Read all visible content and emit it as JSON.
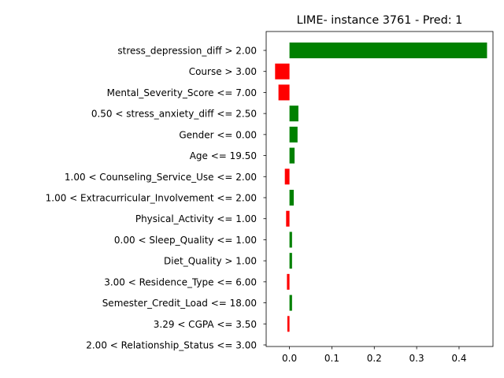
{
  "chart_data": {
    "type": "bar",
    "orientation": "horizontal",
    "title": "LIME- instance 3761 - Pred: 1",
    "xlabel": "",
    "ylabel": "",
    "xlim": [
      -0.055,
      0.48
    ],
    "xticks": [
      0.0,
      0.1,
      0.2,
      0.3,
      0.4
    ],
    "xtick_labels": [
      "0.0",
      "0.1",
      "0.2",
      "0.3",
      "0.4"
    ],
    "grid": false,
    "categories": [
      "stress_depression_diff > 2.00",
      "Course > 3.00",
      "Mental_Severity_Score <= 7.00",
      "0.50 < stress_anxiety_diff <= 2.50",
      "Gender <= 0.00",
      "Age <= 19.50",
      "1.00 < Counseling_Service_Use <= 2.00",
      "1.00 < Extracurricular_Involvement <= 2.00",
      "Physical_Activity <= 1.00",
      "0.00 < Sleep_Quality <= 1.00",
      "Diet_Quality > 1.00",
      "3.00 < Residence_Type <= 6.00",
      "Semester_Credit_Load <= 18.00",
      "3.29 < CGPA <= 3.50",
      "2.00 < Relationship_Status <= 3.00"
    ],
    "values": [
      0.466,
      -0.034,
      -0.026,
      0.021,
      0.019,
      0.012,
      -0.011,
      0.01,
      -0.008,
      0.006,
      0.006,
      -0.006,
      0.006,
      -0.005,
      0.0
    ],
    "colors": {
      "positive": "#008000",
      "negative": "#ff0000"
    }
  }
}
